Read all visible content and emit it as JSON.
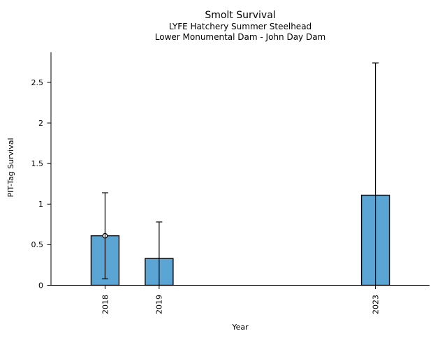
{
  "chart_data": {
    "type": "bar",
    "title": "Smolt Survival",
    "subtitle1": "LYFE Hatchery Summer Steelhead",
    "subtitle2": "Lower Monumental Dam - John Day Dam",
    "xlabel": "Year",
    "ylabel": "PIT-Tag Survival",
    "xlim": [
      2017,
      2024
    ],
    "ylim": [
      0,
      2.87
    ],
    "y_ticks": [
      0,
      0.5,
      1,
      1.5,
      2,
      2.5
    ],
    "y_tick_labels": [
      "0",
      "0.5",
      "1",
      "1.5",
      "2",
      "2.5"
    ],
    "x_tick_labels": [
      "2018",
      "2019",
      "2023"
    ],
    "grid": false,
    "legend_position": "none",
    "bar_color": "#5AA5D3",
    "bar_edge_color": "#000000",
    "error_bar_color": "#000000",
    "points": [
      {
        "year": 2018,
        "label": "2018",
        "value": 0.61,
        "ci_low": 0.08,
        "ci_high": 1.14,
        "marker": true
      },
      {
        "year": 2019,
        "label": "2019",
        "value": 0.33,
        "ci_low": null,
        "ci_high": 0.78,
        "marker": false
      },
      {
        "year": 2023,
        "label": "2023",
        "value": 1.11,
        "ci_low": null,
        "ci_high": 2.74,
        "marker": false
      }
    ]
  }
}
